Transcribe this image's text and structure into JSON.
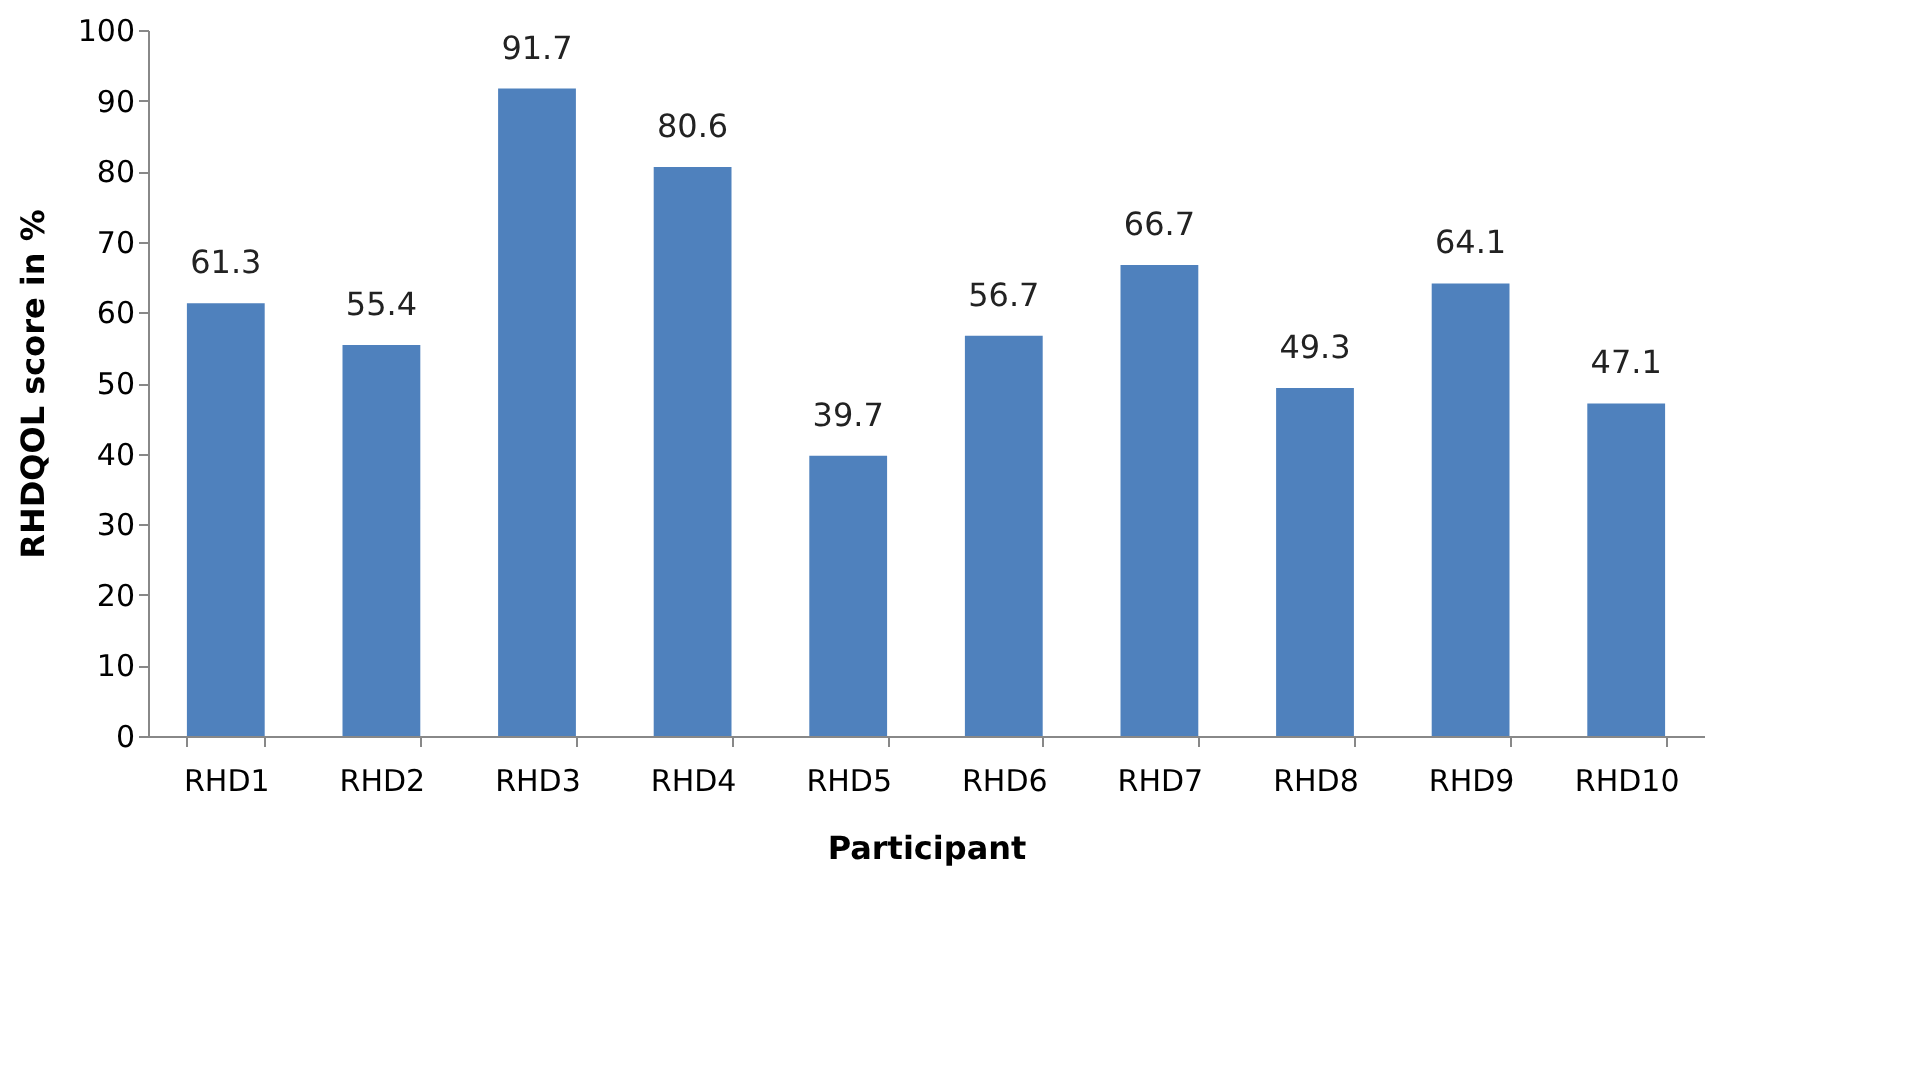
{
  "chart_data": {
    "type": "bar",
    "xlabel": "Participant",
    "ylabel": "RHDQOL score in %",
    "categories": [
      "RHD1",
      "RHD2",
      "RHD3",
      "RHD4",
      "RHD5",
      "RHD6",
      "RHD7",
      "RHD8",
      "RHD9",
      "RHD10"
    ],
    "values": [
      61.3,
      55.4,
      91.7,
      80.6,
      39.7,
      56.7,
      66.7,
      49.3,
      64.1,
      47.1
    ],
    "color": "#4f81bd",
    "ylim": [
      0,
      100
    ],
    "yticks": [
      0,
      10,
      20,
      30,
      40,
      50,
      60,
      70,
      80,
      90,
      100
    ],
    "grid": false,
    "data_labels": true
  }
}
